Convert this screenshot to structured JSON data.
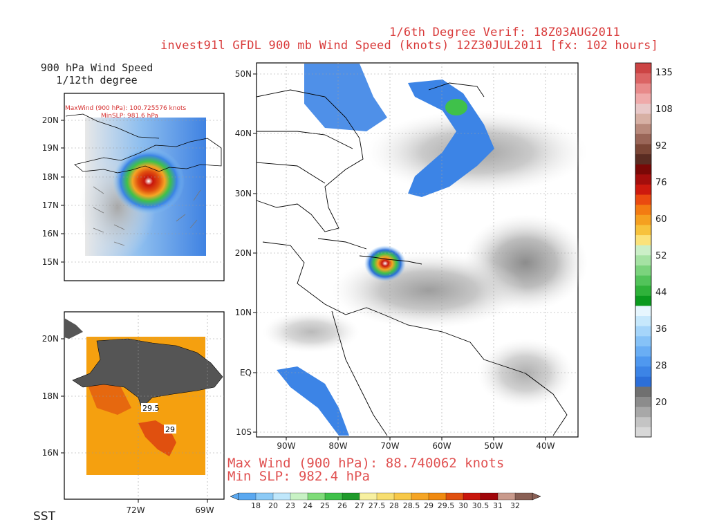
{
  "header": {
    "line1": "1/6th Degree Verif: 18Z03AUG2011",
    "line2": "invest91l GFDL 900 mb Wind Speed (knots) 12Z30JUL2011 [fx: 102 hours]"
  },
  "inset_top": {
    "title_line1": "900 hPa Wind Speed",
    "title_line2": "1/12th degree",
    "maxwind_text": "MaxWind (900 hPa): 100.725576 knots",
    "minslp_text": "MinSLP: 981.6 hPa",
    "lat_labels": [
      "20N",
      "19N",
      "18N",
      "17N",
      "16N",
      "15N"
    ]
  },
  "inset_bottom": {
    "title": "SST",
    "lat_labels": [
      "20N",
      "18N",
      "16N"
    ],
    "lon_labels": [
      "72W",
      "69W"
    ],
    "contour_labels": [
      "29.5",
      "29"
    ]
  },
  "main_map": {
    "lat_labels": [
      "50N",
      "40N",
      "30N",
      "20N",
      "10N",
      "EQ",
      "10S"
    ],
    "lon_labels": [
      "90W",
      "80W",
      "70W",
      "60W",
      "50W",
      "40W"
    ],
    "max_wind": "Max Wind (900 hPa): 88.740062 knots",
    "min_slp": "Min SLP: 982.4 hPa"
  },
  "wind_colorbar": {
    "labels": [
      "135",
      "108",
      "92",
      "76",
      "60",
      "52",
      "44",
      "36",
      "28",
      "20"
    ],
    "colors": [
      "#d8d8d8",
      "#c4c4c4",
      "#a8a8a8",
      "#8c8c8c",
      "#707070",
      "#2c6fd9",
      "#3c84e6",
      "#4f98ef",
      "#6aaef4",
      "#86c2f7",
      "#a5d5fa",
      "#c6e8fc",
      "#e6f6fe",
      "#0a9a1e",
      "#2fb23a",
      "#52c35a",
      "#7bd37d",
      "#a5e2a3",
      "#cbefc7",
      "#fbe27a",
      "#f7c23c",
      "#f5a020",
      "#f37b12",
      "#ea4a10",
      "#cd1a0e",
      "#a40e0c",
      "#7a0806",
      "#5a2c22",
      "#7b4636",
      "#9a6658",
      "#b98a7c",
      "#d7b0a4",
      "#e8c8c8",
      "#efaaaa",
      "#e88a8a",
      "#db6464",
      "#cc4444"
    ]
  },
  "sst_colorbar": {
    "labels": [
      "18",
      "20",
      "23",
      "24",
      "25",
      "26",
      "27",
      "27.5",
      "28",
      "28.5",
      "29",
      "29.5",
      "30",
      "30.5",
      "31",
      "32"
    ],
    "colors": [
      "#5aa8f0",
      "#8ccaf6",
      "#bfe7fb",
      "#c8f2c4",
      "#7fdc79",
      "#3fc14a",
      "#1e9a2a",
      "#f7f0a0",
      "#f7de70",
      "#f7c848",
      "#f5a525",
      "#f08a10",
      "#e0500f",
      "#c8160c",
      "#a0060a",
      "#c99a8c",
      "#8a6055"
    ]
  }
}
